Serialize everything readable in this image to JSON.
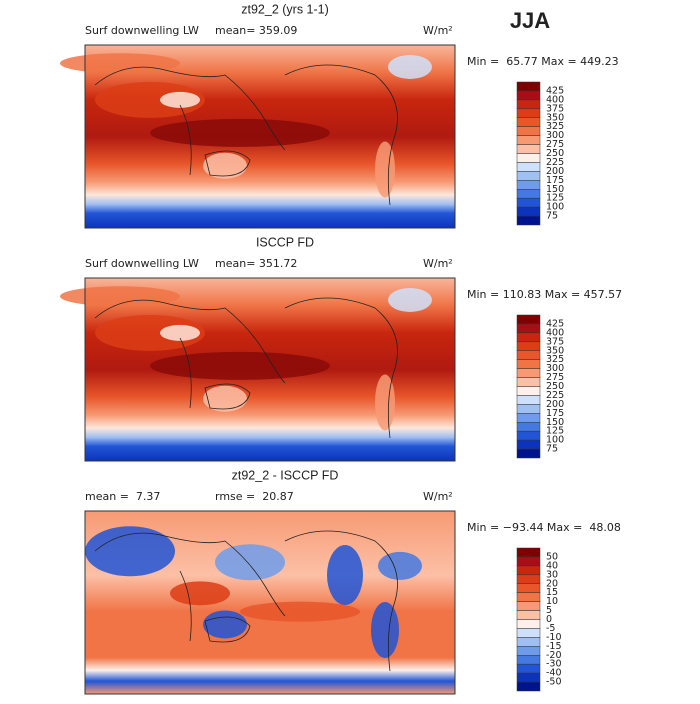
{
  "header": {
    "season": "JJA"
  },
  "panels": [
    {
      "title": "zt92_2 (yrs 1-1)",
      "left_label": "Surf downwelling LW",
      "stat": "mean= 359.09",
      "units": "W/m²",
      "range": "Min =  65.77 Max = 449.23",
      "colorbar": {
        "labels": [
          425,
          400,
          375,
          350,
          325,
          300,
          275,
          250,
          225,
          200,
          175,
          150,
          125,
          100,
          75
        ],
        "colors": [
          "#7f0000",
          "#a50f15",
          "#c8260e",
          "#dc3d16",
          "#e8562a",
          "#f07446",
          "#f79a74",
          "#fcc0a6",
          "#fdf0ea",
          "#cfe0fa",
          "#a0bff3",
          "#6e9ceb",
          "#4479e2",
          "#2155d6",
          "#0c33bb",
          "#00138f"
        ]
      }
    },
    {
      "title": "ISCCP FD",
      "left_label": "Surf downwelling LW",
      "stat": "mean= 351.72",
      "units": "W/m²",
      "range": "Min = 110.83 Max = 457.57",
      "colorbar": {
        "labels": [
          425,
          400,
          375,
          350,
          325,
          300,
          275,
          250,
          225,
          200,
          175,
          150,
          125,
          100,
          75
        ],
        "colors": [
          "#7f0000",
          "#a50f15",
          "#c8260e",
          "#dc3d16",
          "#e8562a",
          "#f07446",
          "#f79a74",
          "#fcc0a6",
          "#fdf0ea",
          "#cfe0fa",
          "#a0bff3",
          "#6e9ceb",
          "#4479e2",
          "#2155d6",
          "#0c33bb",
          "#00138f"
        ]
      }
    },
    {
      "title": "zt92_2 - ISCCP FD",
      "left_label": "mean =  7.37",
      "stat": "rmse =  20.87",
      "units": "W/m²",
      "range": "Min = −93.44 Max =  48.08",
      "colorbar": {
        "labels": [
          50,
          40,
          30,
          20,
          15,
          10,
          5,
          0,
          -5,
          -10,
          -15,
          -20,
          -30,
          -40,
          -50
        ],
        "colors": [
          "#7f0000",
          "#a50f15",
          "#c8260e",
          "#dc3d16",
          "#e8562a",
          "#f07446",
          "#f79a74",
          "#fcc0a6",
          "#fdf0ea",
          "#cfe0fa",
          "#a0bff3",
          "#6e9ceb",
          "#4479e2",
          "#2155d6",
          "#0c33bb",
          "#00138f"
        ]
      }
    }
  ]
}
